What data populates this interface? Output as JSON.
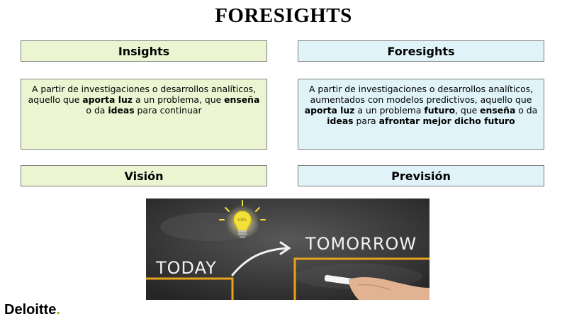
{
  "slide": {
    "title": "FORESIGHTS"
  },
  "left": {
    "header": "Insights",
    "text": [
      {
        "t": "A partir de investigaciones o desarrollos analíticos, aquello que ",
        "b": false
      },
      {
        "t": "aporta luz",
        "b": true
      },
      {
        "t": " a un problema, que ",
        "b": false
      },
      {
        "t": "enseña",
        "b": true
      },
      {
        "t": " o da ",
        "b": false
      },
      {
        "t": "ideas",
        "b": true
      },
      {
        "t": " para continuar",
        "b": false
      }
    ],
    "footer": "Visión"
  },
  "right": {
    "header": "Foresights",
    "text": [
      {
        "t": "A partir de investigaciones o desarrollos analíticos, aumentados con modelos predictivos, aquello que ",
        "b": false
      },
      {
        "t": "aporta luz",
        "b": true
      },
      {
        "t": " a un problema ",
        "b": false
      },
      {
        "t": "futuro",
        "b": true
      },
      {
        "t": ", que ",
        "b": false
      },
      {
        "t": "enseña",
        "b": true
      },
      {
        "t": " o da ",
        "b": false
      },
      {
        "t": "ideas",
        "b": true
      },
      {
        "t": " para ",
        "b": false
      },
      {
        "t": "afrontar mejor dicho futuro",
        "b": true
      }
    ],
    "footer": "Previsión"
  },
  "image": {
    "left_word": "TODAY",
    "right_word": "TOMORROW",
    "bulb_text": "IDEA"
  },
  "brand": {
    "name": "Deloitte",
    "dot": ".",
    "accent_color": "#86bc25"
  },
  "colors": {
    "green_box": "#ebf5d2",
    "blue_box": "#dff3f8",
    "chalk_orange": "#e8a21c"
  }
}
